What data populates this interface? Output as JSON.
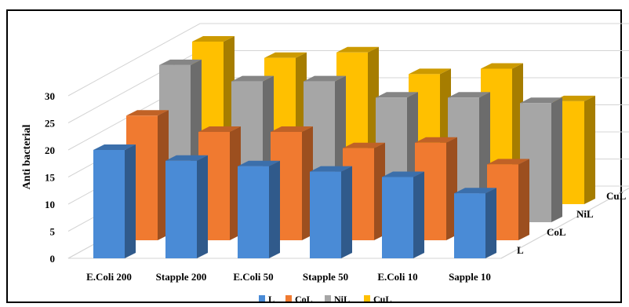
{
  "chart_data": {
    "type": "bar",
    "chart_3d": true,
    "ylabel": "Anti bacterial",
    "ylim": [
      0,
      30
    ],
    "y_ticks": [
      "0",
      "5",
      "10",
      "15",
      "20",
      "25",
      "30"
    ],
    "categories": [
      "E.Coli 200",
      "Stapple 200",
      "E.Coli 50",
      "Stapple 50",
      "E.Coli 10",
      "Sapple 10"
    ],
    "depth_labels": [
      "L",
      "CoL",
      "NiL",
      "CuL"
    ],
    "legend_position": "bottom",
    "grid": true,
    "series": [
      {
        "name": "L",
        "color": "#4a8bd6",
        "values": [
          20,
          18,
          17,
          16,
          15,
          12
        ]
      },
      {
        "name": "CoL",
        "color": "#f07a30",
        "values": [
          23,
          20,
          20,
          17,
          18,
          14
        ]
      },
      {
        "name": "NiL",
        "color": "#a6a6a6",
        "values": [
          29,
          26,
          26,
          23,
          23,
          22
        ]
      },
      {
        "name": "CuL",
        "color": "#ffc000",
        "values": [
          30,
          27,
          28,
          24,
          25,
          19
        ]
      }
    ]
  }
}
